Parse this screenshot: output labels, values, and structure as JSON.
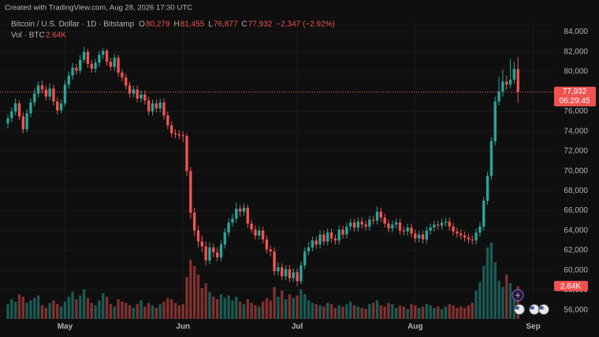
{
  "credit": "Created with TradingView.com, Aug 28, 2026 17:30 UTC",
  "chart_data": {
    "type": "candlestick",
    "title": "Bitcoin / U.S. Dollar · 1D · Bitstamp",
    "ohlc_legend": [
      {
        "key": "O",
        "label": "80,279"
      },
      {
        "key": "H",
        "label": "81,455"
      },
      {
        "key": "L",
        "label": "76,877"
      },
      {
        "key": "C",
        "label": "77,932"
      }
    ],
    "change": "−2,347 (−2.92%)",
    "volume_title": "Vol · BTC",
    "volume_label": "2.64K",
    "last_price": {
      "value": 77932,
      "label": "77,932"
    },
    "countdown": "06:29:45",
    "up_color": "#26a69a",
    "down_color": "#ef5350",
    "grid": true,
    "categories": [
      null,
      null,
      null,
      null,
      null,
      null,
      null,
      null,
      null,
      null,
      null,
      null,
      null,
      null,
      null,
      "May",
      null,
      null,
      null,
      null,
      null,
      null,
      null,
      null,
      null,
      null,
      null,
      null,
      null,
      null,
      null,
      null,
      null,
      null,
      null,
      null,
      null,
      null,
      null,
      null,
      null,
      null,
      null,
      null,
      null,
      null,
      "Jun",
      null,
      null,
      null,
      null,
      null,
      null,
      null,
      null,
      null,
      null,
      null,
      null,
      null,
      null,
      null,
      null,
      null,
      null,
      null,
      null,
      null,
      null,
      null,
      null,
      null,
      null,
      null,
      null,
      null,
      "Jul",
      null,
      null,
      null,
      null,
      null,
      null,
      null,
      null,
      null,
      null,
      null,
      null,
      null,
      null,
      null,
      null,
      null,
      null,
      null,
      null,
      null,
      null,
      null,
      null,
      null,
      null,
      null,
      null,
      null,
      null,
      "Aug",
      null,
      null,
      null,
      null,
      null,
      null,
      null,
      null,
      null,
      null,
      null,
      null,
      null,
      null,
      null,
      null,
      null,
      null,
      null,
      null,
      null,
      null,
      null,
      null,
      null,
      null,
      null,
      null,
      null,
      null,
      "Sep"
    ],
    "open": [
      74800,
      75300,
      76000,
      76800,
      75500,
      74200,
      75800,
      76900,
      77800,
      78600,
      78200,
      77500,
      78300,
      77000,
      76100,
      76800,
      78700,
      79600,
      80400,
      80100,
      81200,
      82000,
      80800,
      80300,
      80900,
      81700,
      82100,
      81000,
      80500,
      81400,
      79900,
      79400,
      78600,
      77800,
      78200,
      77300,
      77700,
      77100,
      76000,
      76800,
      76300,
      76900,
      75600,
      74600,
      73800,
      73700,
      73600,
      73500,
      70000,
      65800,
      64000,
      62900,
      62400,
      61000,
      62300,
      61800,
      61300,
      62600,
      63800,
      64800,
      65200,
      66200,
      65900,
      66300,
      64700,
      64100,
      63500,
      64000,
      63100,
      62100,
      61900,
      59900,
      60300,
      59400,
      60100,
      59200,
      59800,
      58900,
      60500,
      61900,
      62300,
      63000,
      62600,
      63600,
      62900,
      63800,
      63200,
      63000,
      64100,
      63600,
      64400,
      64800,
      64300,
      64900,
      64600,
      64400,
      65100,
      65000,
      65900,
      65300,
      64700,
      64200,
      64600,
      64800,
      64000,
      63900,
      64300,
      63700,
      63200,
      63600,
      63100,
      64000,
      64300,
      64600,
      64500,
      64800,
      64900,
      64400,
      63900,
      63700,
      63500,
      63300,
      63100,
      63000,
      63800,
      64400,
      67000,
      69500,
      73000,
      77000,
      78000,
      79000,
      78700,
      79200,
      80279,
      null,
      null,
      null,
      null
    ],
    "high": [
      75700,
      76400,
      77300,
      77100,
      75900,
      76200,
      77300,
      78300,
      79000,
      79100,
      78600,
      78800,
      78700,
      77400,
      77200,
      79100,
      80000,
      80900,
      80800,
      81700,
      82500,
      82300,
      81200,
      81300,
      82100,
      82400,
      82300,
      81400,
      81800,
      81700,
      80300,
      79800,
      79000,
      78600,
      78600,
      78100,
      78100,
      77500,
      77200,
      77200,
      77300,
      77300,
      76000,
      75000,
      74200,
      74100,
      74000,
      73800,
      70400,
      66300,
      64500,
      63500,
      62900,
      62800,
      62700,
      62300,
      63000,
      64200,
      65200,
      65700,
      66800,
      66600,
      66700,
      66600,
      65100,
      64500,
      64400,
      64400,
      63500,
      62500,
      62300,
      60800,
      60700,
      60500,
      60500,
      60200,
      60200,
      60900,
      62300,
      62800,
      63400,
      63400,
      64000,
      64000,
      64200,
      64200,
      63600,
      64500,
      64500,
      64800,
      65200,
      65200,
      65300,
      65300,
      65000,
      65500,
      65500,
      66400,
      66300,
      65700,
      65100,
      65000,
      65200,
      65200,
      64400,
      64700,
      64700,
      64100,
      64000,
      64000,
      64400,
      64700,
      65000,
      65000,
      65200,
      65300,
      65300,
      64800,
      64300,
      64100,
      63900,
      63700,
      63500,
      64200,
      64800,
      67400,
      69900,
      73400,
      77500,
      79500,
      80200,
      79600,
      81300,
      81000,
      81455,
      null,
      null,
      null,
      null
    ],
    "low": [
      74300,
      74900,
      75600,
      75100,
      73800,
      73900,
      75400,
      76500,
      77400,
      77800,
      77100,
      77100,
      76600,
      75700,
      75800,
      76500,
      78300,
      79200,
      79700,
      79800,
      80900,
      80400,
      79900,
      79900,
      80500,
      81300,
      80600,
      80100,
      80100,
      79500,
      79000,
      78200,
      77400,
      77400,
      76900,
      76900,
      76700,
      75600,
      75600,
      75900,
      75900,
      75200,
      74200,
      73400,
      73300,
      73200,
      72900,
      69500,
      65200,
      63400,
      62300,
      61800,
      60500,
      60600,
      61300,
      60900,
      60900,
      62200,
      63400,
      64400,
      64800,
      65400,
      65500,
      64300,
      63700,
      63100,
      63100,
      62700,
      61700,
      61400,
      59500,
      59500,
      59000,
      59000,
      58800,
      58800,
      58400,
      58600,
      60100,
      61500,
      61900,
      62200,
      62200,
      62500,
      62500,
      62800,
      62600,
      62600,
      63200,
      63200,
      64000,
      63900,
      63900,
      64200,
      64000,
      64000,
      64600,
      64600,
      64900,
      64300,
      63800,
      63800,
      64200,
      63600,
      63500,
      63500,
      63300,
      62800,
      62800,
      62700,
      62700,
      63600,
      63900,
      64100,
      64100,
      64400,
      64000,
      63500,
      63300,
      63100,
      62900,
      62700,
      62600,
      62600,
      63400,
      64000,
      66600,
      69100,
      72600,
      76600,
      77500,
      78200,
      78300,
      78800,
      76877,
      null,
      null,
      null,
      null
    ],
    "close": [
      75300,
      76000,
      76800,
      75500,
      74200,
      75800,
      76900,
      77800,
      78600,
      78200,
      77500,
      78300,
      77000,
      76100,
      76800,
      78700,
      79600,
      80400,
      80100,
      81200,
      82000,
      80800,
      80300,
      80900,
      81700,
      82100,
      81000,
      80500,
      81400,
      79900,
      79400,
      78600,
      77800,
      78200,
      77300,
      77700,
      77100,
      76000,
      76800,
      76300,
      76900,
      75600,
      74600,
      73800,
      73700,
      73600,
      73500,
      70000,
      65800,
      64000,
      62900,
      62400,
      61000,
      62300,
      61800,
      61300,
      62600,
      63800,
      64800,
      65200,
      66200,
      65900,
      66300,
      64700,
      64100,
      63500,
      64000,
      63100,
      62100,
      61900,
      59900,
      60300,
      59400,
      60100,
      59200,
      59800,
      58900,
      60500,
      61900,
      62300,
      63000,
      62600,
      63600,
      62900,
      63800,
      63200,
      63000,
      64100,
      63600,
      64400,
      64800,
      64300,
      64900,
      64600,
      64400,
      65100,
      65000,
      65900,
      65300,
      64700,
      64200,
      64600,
      64800,
      64000,
      63900,
      64300,
      63700,
      63200,
      63600,
      63100,
      64000,
      64300,
      64600,
      64500,
      64800,
      64900,
      64400,
      63900,
      63700,
      63500,
      63300,
      63100,
      63000,
      63800,
      64400,
      67000,
      69500,
      73000,
      77000,
      78000,
      79000,
      78700,
      79200,
      80279,
      77932,
      null,
      null,
      null,
      null
    ],
    "volume": [
      1200,
      1600,
      1400,
      2000,
      1800,
      1300,
      1500,
      1700,
      1900,
      1100,
      900,
      1300,
      1500,
      1200,
      1000,
      1400,
      1800,
      2200,
      1600,
      1900,
      2400,
      1700,
      1300,
      1100,
      1500,
      2100,
      1800,
      1200,
      1000,
      1600,
      1400,
      1300,
      1100,
      900,
      1200,
      1500,
      1000,
      1300,
      1100,
      900,
      1200,
      1400,
      1700,
      1600,
      1300,
      1100,
      1200,
      3400,
      4800,
      4300,
      3600,
      2500,
      2900,
      2200,
      1800,
      1600,
      2000,
      1700,
      1900,
      1500,
      1800,
      1400,
      1200,
      1600,
      1300,
      1100,
      1000,
      1400,
      1700,
      1500,
      2600,
      1800,
      2300,
      1600,
      2000,
      1700,
      1900,
      2400,
      2000,
      1500,
      1300,
      1200,
      1100,
      1000,
      1300,
      1200,
      900,
      1100,
      1000,
      1200,
      1400,
      1100,
      1000,
      900,
      800,
      1200,
      1300,
      1500,
      1100,
      1000,
      1300,
      1200,
      900,
      1100,
      1000,
      800,
      1200,
      1100,
      900,
      1000,
      1200,
      1100,
      900,
      1000,
      800,
      1000,
      1200,
      1100,
      900,
      1000,
      900,
      1100,
      1300,
      2300,
      3000,
      4300,
      5800,
      6200,
      4600,
      3100,
      2600,
      3600,
      2900,
      1800,
      2640,
      null,
      null,
      null,
      null
    ],
    "ylim": [
      55100,
      85000
    ],
    "yticks": [
      {
        "value": 56000,
        "label": "56,000"
      },
      {
        "value": 58000,
        "label": "58,000"
      },
      {
        "value": 60000,
        "label": "60,000"
      },
      {
        "value": 62000,
        "label": "62,000"
      },
      {
        "value": 64000,
        "label": "64,000"
      },
      {
        "value": 66000,
        "label": "66,000"
      },
      {
        "value": 68000,
        "label": "68,000"
      },
      {
        "value": 70000,
        "label": "70,000"
      },
      {
        "value": 72000,
        "label": "72,000"
      },
      {
        "value": 74000,
        "label": "74,000"
      },
      {
        "value": 76000,
        "label": "76,000"
      },
      {
        "value": 78000,
        "label": "78,000"
      },
      {
        "value": 80000,
        "label": "80,000"
      },
      {
        "value": 82000,
        "label": "82,000"
      },
      {
        "value": 84000,
        "label": "84,000"
      }
    ]
  }
}
